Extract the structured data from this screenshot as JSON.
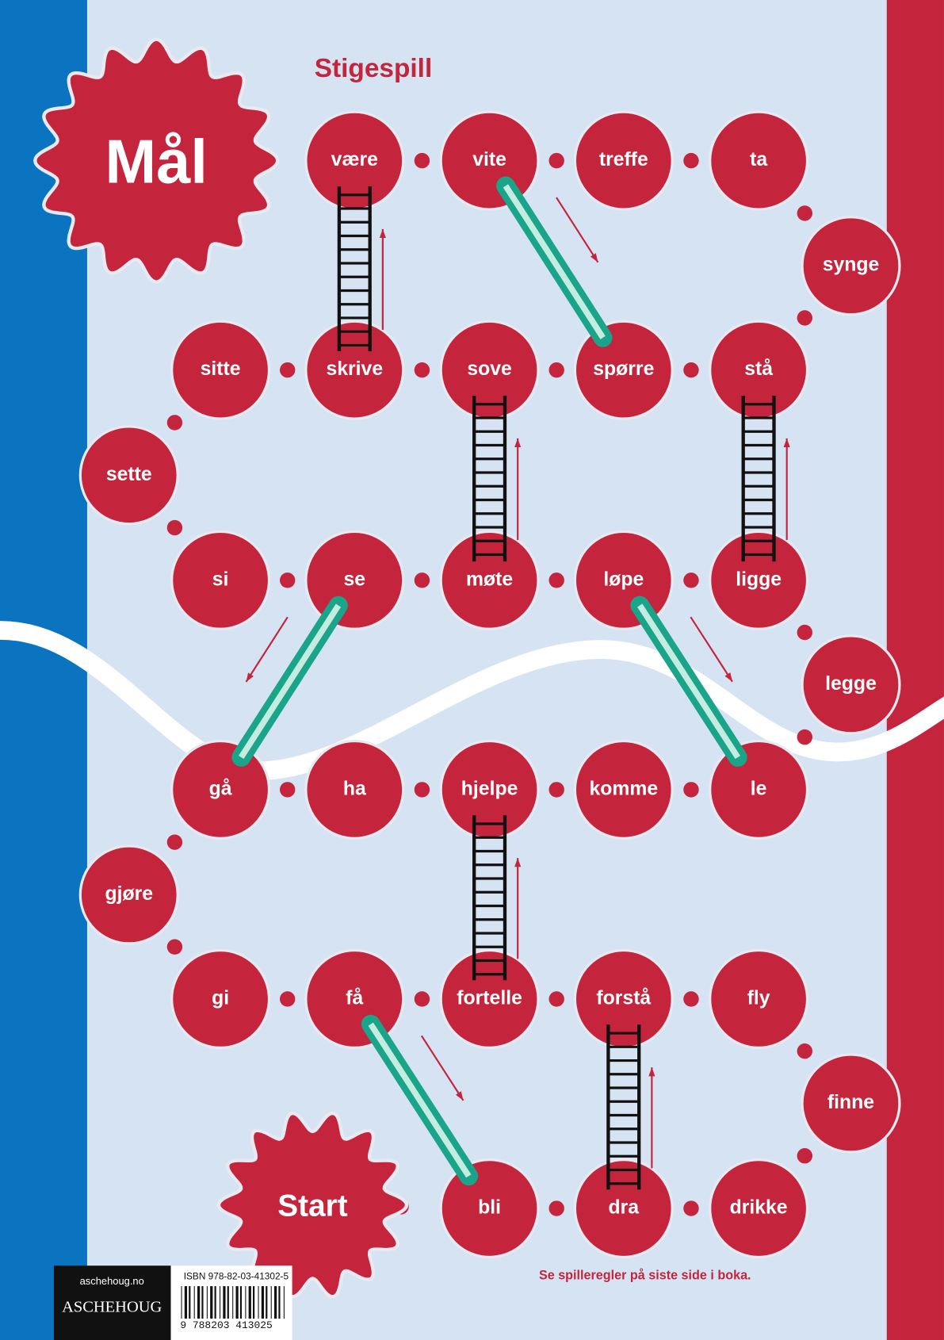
{
  "title": "Stigespill",
  "goal": "Mål",
  "start": "Start",
  "cells": [
    "bli",
    "dra",
    "drikke",
    "finne",
    "fly",
    "forstå",
    "fortelle",
    "få",
    "gi",
    "gjøre",
    "gå",
    "ha",
    "hjelpe",
    "komme",
    "le",
    "legge",
    "ligge",
    "løpe",
    "møte",
    "se",
    "si",
    "sette",
    "sitte",
    "skrive",
    "sove",
    "spørre",
    "stå",
    "synge",
    "ta",
    "treffe",
    "vite",
    "være"
  ],
  "rules_note": "Se spilleregler på siste side i boka.",
  "publisher": {
    "website": "aschehoug.no",
    "logo": "ASCHEHOUG",
    "isbn": "ISBN 978-82-03-41302-5",
    "barcode_digits": "9 788203 413025"
  }
}
